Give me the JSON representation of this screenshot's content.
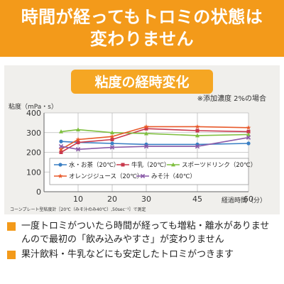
{
  "banner": {
    "line1": "時間が経ってもトロミの状態は",
    "line2": "変わりません"
  },
  "bullets": [
    "一度トロミがついたら時間が経っても増粘・離水がありませんので最初の「飲み込みやすさ」が変わりません",
    "果汁飲料・牛乳などにも安定したトロミがつきます"
  ],
  "colors": {
    "accent": "#f39a1a",
    "chart_title_bg": "#f5a623"
  },
  "chart_data": {
    "type": "line",
    "title": "粘度の経時変化",
    "subtitle": "※添加濃度 2%の場合",
    "ylabel": "粘度（mPa・s）",
    "xlabel": "経過時間（分）",
    "footnote": "コーンプレート型粘度計［20℃（みそ汁のみ40℃）,50sec⁻¹］で測定",
    "ylim": [
      0,
      400
    ],
    "xlim": [
      0,
      60
    ],
    "yticks": [
      0,
      100,
      200,
      300,
      400
    ],
    "xticks": [
      10,
      20,
      30,
      45,
      60
    ],
    "grid": true,
    "series": [
      {
        "name": "水・お茶（20℃）",
        "color": "#3a7fc4",
        "marker": "circle",
        "x": [
          5,
          10,
          20,
          30,
          45,
          60
        ],
        "values": [
          255,
          250,
          245,
          240,
          240,
          245
        ]
      },
      {
        "name": "牛乳（20℃）",
        "color": "#c8384c",
        "marker": "square",
        "x": [
          5,
          10,
          20,
          30,
          45,
          60
        ],
        "values": [
          200,
          250,
          265,
          320,
          310,
          305
        ]
      },
      {
        "name": "スポーツドリンク（20℃）",
        "color": "#7fbf3f",
        "marker": "triangle",
        "x": [
          5,
          10,
          20,
          30,
          45,
          60
        ],
        "values": [
          305,
          315,
          300,
          295,
          285,
          290
        ]
      },
      {
        "name": "オレンジジュース（20℃）",
        "color": "#e8592a",
        "marker": "star",
        "x": [
          5,
          10,
          20,
          30,
          45,
          60
        ],
        "values": [
          215,
          265,
          280,
          330,
          330,
          325
        ]
      },
      {
        "name": "みそ汁（40℃）",
        "color": "#8a5aa8",
        "marker": "x",
        "x": [
          5,
          10,
          20,
          30,
          45,
          60
        ],
        "values": [
          230,
          215,
          225,
          230,
          230,
          275
        ]
      }
    ]
  }
}
